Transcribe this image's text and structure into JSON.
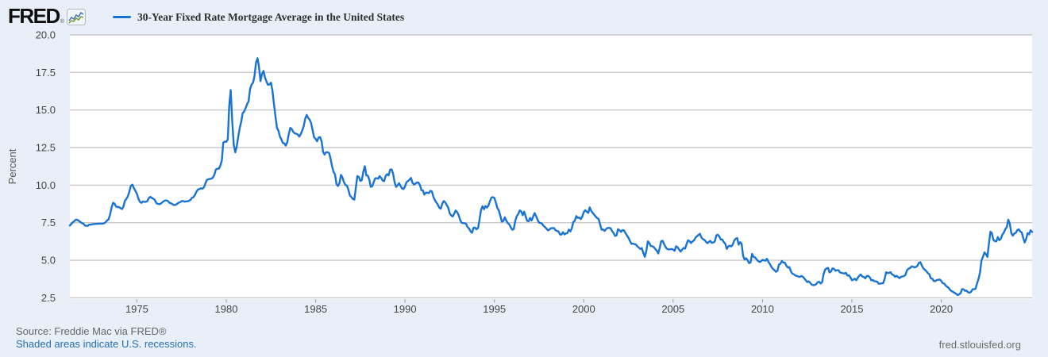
{
  "header": {
    "logo_text": "FRED",
    "logo_registered": "®"
  },
  "footer": {
    "source": "Source: Freddie Mac via FRED®",
    "recessions_note": "Shaded areas indicate U.S. recessions.",
    "site": "fred.stlouisfed.org"
  },
  "chart_data": {
    "type": "line",
    "title": "30-Year Fixed Rate Mortgage Average in the United States",
    "ylabel": "Percent",
    "xlabel": "",
    "legend_position": "top-left",
    "grid": "horizontal",
    "line_color": "#1973d2",
    "ylim": [
      2.5,
      20.0
    ],
    "y_ticks": [
      20.0,
      17.5,
      15.0,
      12.5,
      10.0,
      7.5,
      5.0,
      2.5
    ],
    "y_tick_labels": [
      "20.0",
      "17.5",
      "15.0",
      "12.5",
      "10.0",
      "7.5",
      "5.0",
      "2.5"
    ],
    "x_ticks": [
      1975,
      1980,
      1985,
      1990,
      1995,
      2000,
      2005,
      2010,
      2015,
      2020
    ],
    "x_tick_labels": [
      "1975",
      "1980",
      "1985",
      "1990",
      "1995",
      "2000",
      "2005",
      "2010",
      "2015",
      "2020"
    ],
    "frequency": "monthly",
    "x_start": 1971.25,
    "values": [
      7.31,
      7.42,
      7.53,
      7.6,
      7.7,
      7.69,
      7.63,
      7.55,
      7.48,
      7.44,
      7.32,
      7.29,
      7.29,
      7.37,
      7.37,
      7.4,
      7.4,
      7.42,
      7.42,
      7.43,
      7.44,
      7.44,
      7.44,
      7.46,
      7.54,
      7.65,
      7.73,
      8.05,
      8.5,
      8.82,
      8.77,
      8.58,
      8.54,
      8.54,
      8.46,
      8.41,
      8.58,
      8.97,
      9.09,
      9.28,
      9.59,
      9.96,
      10.03,
      9.79,
      9.62,
      9.43,
      9.1,
      8.89,
      8.82,
      8.91,
      8.89,
      8.89,
      8.94,
      9.13,
      9.22,
      9.15,
      9.1,
      9.02,
      8.81,
      8.76,
      8.73,
      8.77,
      8.85,
      8.93,
      8.98,
      8.98,
      8.93,
      8.81,
      8.79,
      8.72,
      8.67,
      8.69,
      8.75,
      8.83,
      8.86,
      8.94,
      8.94,
      8.9,
      8.92,
      8.92,
      8.96,
      9.02,
      9.16,
      9.2,
      9.36,
      9.57,
      9.71,
      9.74,
      9.79,
      9.76,
      9.86,
      10.11,
      10.35,
      10.39,
      10.41,
      10.43,
      10.5,
      10.69,
      11.04,
      11.09,
      11.09,
      11.3,
      11.64,
      12.83,
      12.9,
      12.88,
      13.04,
      15.28,
      16.33,
      14.26,
      12.71,
      12.19,
      12.56,
      13.2,
      13.79,
      14.21,
      14.79,
      14.9,
      15.13,
      15.4,
      15.58,
      16.4,
      16.7,
      16.83,
      17.28,
      18.16,
      18.45,
      17.83,
      16.92,
      17.4,
      17.6,
      17.16,
      16.89,
      16.68,
      16.7,
      16.82,
      16.27,
      15.43,
      14.61,
      13.83,
      13.62,
      13.25,
      13.04,
      12.8,
      12.78,
      12.63,
      12.87,
      13.42,
      13.81,
      13.73,
      13.54,
      13.44,
      13.42,
      13.37,
      13.23,
      13.39,
      13.65,
      13.94,
      14.42,
      14.67,
      14.47,
      14.35,
      14.13,
      13.64,
      13.18,
      13.08,
      12.92,
      13.17,
      13.2,
      12.91,
      12.22,
      12.03,
      12.19,
      12.19,
      12.14,
      11.78,
      11.26,
      10.88,
      10.71,
      10.08,
      9.94,
      10.14,
      10.68,
      10.51,
      10.2,
      10.01,
      9.97,
      9.7,
      9.31,
      9.2,
      9.08,
      9.04,
      9.83,
      10.6,
      10.54,
      10.28,
      10.33,
      10.89,
      11.26,
      10.65,
      10.64,
      10.38,
      9.89,
      9.93,
      10.2,
      10.46,
      10.46,
      10.43,
      10.6,
      10.48,
      10.3,
      10.27,
      10.61,
      10.73,
      10.65,
      11.03,
      11.05,
      10.77,
      10.2,
      9.88,
      9.99,
      10.13,
      9.95,
      9.77,
      9.74,
      9.9,
      10.2,
      10.27,
      10.37,
      10.48,
      10.16,
      10.04,
      10.1,
      10.18,
      10.17,
      10.01,
      9.67,
      9.64,
      9.37,
      9.5,
      9.49,
      9.47,
      9.62,
      9.58,
      9.24,
      9.01,
      8.86,
      8.71,
      8.5,
      8.43,
      8.76,
      8.94,
      8.85,
      8.67,
      8.51,
      8.13,
      7.98,
      7.92,
      8.09,
      8.31,
      8.21,
      7.99,
      7.68,
      7.5,
      7.47,
      7.47,
      7.42,
      7.21,
      7.11,
      6.92,
      6.83,
      7.16,
      7.17,
      7.06,
      7.15,
      7.68,
      8.32,
      8.6,
      8.4,
      8.61,
      8.51,
      8.64,
      8.93,
      9.17,
      9.2,
      9.15,
      8.83,
      8.46,
      8.32,
      7.96,
      7.57,
      7.61,
      7.86,
      7.64,
      7.48,
      7.38,
      7.2,
      7.03,
      7.08,
      7.62,
      7.93,
      8.07,
      8.32,
      8.25,
      8.0,
      8.23,
      7.92,
      7.62,
      7.6,
      7.82,
      7.65,
      7.9,
      8.14,
      7.94,
      7.69,
      7.5,
      7.48,
      7.43,
      7.29,
      7.21,
      7.1,
      6.99,
      7.04,
      7.13,
      7.14,
      7.14,
      7.0,
      6.95,
      6.92,
      6.72,
      6.71,
      6.87,
      6.72,
      6.79,
      6.81,
      7.04,
      6.92,
      7.15,
      7.55,
      7.63,
      7.94,
      7.82,
      7.85,
      7.74,
      7.91,
      8.21,
      8.33,
      8.24,
      8.15,
      8.52,
      8.29,
      8.15,
      8.03,
      7.91,
      7.8,
      7.75,
      7.38,
      7.03,
      7.05,
      6.95,
      7.08,
      7.15,
      7.16,
      7.13,
      6.95,
      6.82,
      6.62,
      6.66,
      7.07,
      7.0,
      6.89,
      7.01,
      6.99,
      6.81,
      6.65,
      6.49,
      6.29,
      6.09,
      6.11,
      6.07,
      6.05,
      5.92,
      5.84,
      5.75,
      5.81,
      5.48,
      5.23,
      5.63,
      6.26,
      6.15,
      5.95,
      5.93,
      5.88,
      5.74,
      5.64,
      5.45,
      5.83,
      6.27,
      6.29,
      6.06,
      5.87,
      5.75,
      5.72,
      5.73,
      5.75,
      5.71,
      5.63,
      5.93,
      5.86,
      5.72,
      5.58,
      5.7,
      5.82,
      5.77,
      6.07,
      6.33,
      6.27,
      6.15,
      6.25,
      6.32,
      6.51,
      6.6,
      6.68,
      6.76,
      6.52,
      6.4,
      6.36,
      6.24,
      6.14,
      6.22,
      6.29,
      6.16,
      6.18,
      6.26,
      6.66,
      6.7,
      6.57,
      6.38,
      6.38,
      6.21,
      6.1,
      5.76,
      5.92,
      5.97,
      5.92,
      6.04,
      6.32,
      6.43,
      6.48,
      6.04,
      6.2,
      6.09,
      5.29,
      5.05,
      5.13,
      5.0,
      4.81,
      4.86,
      5.42,
      5.22,
      5.19,
      5.06,
      4.95,
      4.88,
      4.93,
      5.03,
      4.99,
      4.97,
      5.1,
      4.89,
      4.74,
      4.56,
      4.43,
      4.35,
      4.23,
      4.3,
      4.71,
      4.76,
      4.95,
      4.84,
      4.84,
      4.64,
      4.51,
      4.55,
      4.27,
      4.11,
      4.07,
      3.99,
      3.96,
      3.92,
      3.89,
      3.95,
      3.91,
      3.8,
      3.68,
      3.55,
      3.6,
      3.5,
      3.38,
      3.35,
      3.35,
      3.41,
      3.53,
      3.57,
      3.45,
      3.54,
      4.07,
      4.37,
      4.46,
      4.49,
      4.19,
      4.26,
      4.46,
      4.43,
      4.3,
      4.34,
      4.34,
      4.19,
      4.16,
      4.13,
      4.12,
      4.16,
      3.98,
      4.0,
      3.86,
      3.67,
      3.71,
      3.77,
      3.67,
      3.84,
      3.98,
      4.05,
      3.91,
      3.89,
      3.8,
      3.94,
      3.96,
      3.87,
      3.66,
      3.69,
      3.61,
      3.6,
      3.57,
      3.44,
      3.44,
      3.46,
      3.47,
      3.77,
      4.2,
      4.15,
      4.17,
      4.2,
      4.05,
      4.01,
      3.9,
      3.97,
      3.88,
      3.81,
      3.9,
      3.92,
      3.95,
      4.03,
      4.33,
      4.44,
      4.47,
      4.59,
      4.57,
      4.53,
      4.55,
      4.63,
      4.83,
      4.87,
      4.64,
      4.46,
      4.37,
      4.27,
      4.14,
      4.07,
      3.8,
      3.77,
      3.62,
      3.61,
      3.69,
      3.7,
      3.72,
      3.62,
      3.47,
      3.45,
      3.31,
      3.23,
      3.16,
      3.02,
      2.94,
      2.89,
      2.83,
      2.77,
      2.68,
      2.74,
      2.81,
      3.08,
      3.06,
      2.96,
      2.98,
      2.87,
      2.84,
      2.9,
      3.07,
      3.07,
      3.1,
      3.45,
      3.76,
      4.17,
      4.98,
      5.23,
      5.52,
      5.41,
      5.22,
      6.11,
      6.9,
      6.81,
      6.36,
      6.27,
      6.26,
      6.54,
      6.34,
      6.43,
      6.71,
      6.84,
      7.07,
      7.2,
      7.7,
      7.44,
      6.82,
      6.64,
      6.78,
      6.82,
      7.0,
      7.06,
      6.92,
      6.85,
      6.5,
      6.18,
      6.43,
      6.81,
      6.72,
      7.0,
      6.89
    ]
  }
}
